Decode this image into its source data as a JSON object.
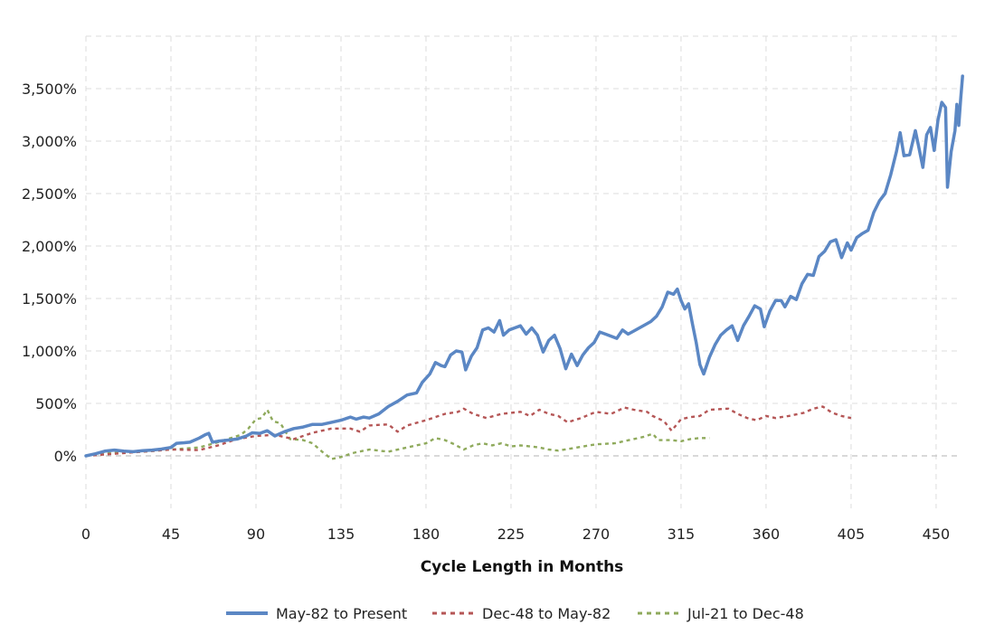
{
  "chart_data": {
    "type": "line",
    "title": "",
    "xlabel": "Cycle Length in Months",
    "ylabel": "",
    "xlim": [
      0,
      462
    ],
    "ylim": [
      -500,
      4000
    ],
    "x_ticks": [
      0,
      45,
      90,
      135,
      180,
      225,
      270,
      315,
      360,
      405,
      450
    ],
    "x_tick_labels": [
      "0",
      "45",
      "90",
      "135",
      "180",
      "225",
      "270",
      "315",
      "360",
      "405",
      "450"
    ],
    "y_ticks": [
      0,
      500,
      1000,
      1500,
      2000,
      2500,
      3000,
      3500
    ],
    "y_tick_labels": [
      "0%",
      "500%",
      "1,000%",
      "1,500%",
      "2,000%",
      "2,500%",
      "3,000%",
      "3,500%"
    ],
    "grid": true,
    "legend_position": "bottom",
    "series": [
      {
        "name": "May-82 to Present",
        "color": "#5b87c4",
        "style": "solid",
        "points": [
          [
            0,
            0
          ],
          [
            5,
            20
          ],
          [
            10,
            45
          ],
          [
            15,
            55
          ],
          [
            20,
            45
          ],
          [
            25,
            40
          ],
          [
            30,
            50
          ],
          [
            35,
            55
          ],
          [
            40,
            65
          ],
          [
            45,
            80
          ],
          [
            48,
            120
          ],
          [
            52,
            125
          ],
          [
            55,
            130
          ],
          [
            60,
            170
          ],
          [
            63,
            200
          ],
          [
            65,
            215
          ],
          [
            67,
            130
          ],
          [
            70,
            140
          ],
          [
            75,
            150
          ],
          [
            80,
            160
          ],
          [
            85,
            190
          ],
          [
            88,
            220
          ],
          [
            92,
            215
          ],
          [
            96,
            240
          ],
          [
            100,
            190
          ],
          [
            105,
            230
          ],
          [
            110,
            260
          ],
          [
            115,
            275
          ],
          [
            120,
            300
          ],
          [
            125,
            300
          ],
          [
            130,
            320
          ],
          [
            135,
            340
          ],
          [
            140,
            370
          ],
          [
            143,
            350
          ],
          [
            147,
            370
          ],
          [
            150,
            360
          ],
          [
            155,
            400
          ],
          [
            160,
            470
          ],
          [
            165,
            520
          ],
          [
            170,
            580
          ],
          [
            175,
            600
          ],
          [
            178,
            700
          ],
          [
            182,
            780
          ],
          [
            185,
            890
          ],
          [
            188,
            860
          ],
          [
            190,
            850
          ],
          [
            193,
            960
          ],
          [
            196,
            1000
          ],
          [
            199,
            990
          ],
          [
            201,
            820
          ],
          [
            204,
            950
          ],
          [
            207,
            1030
          ],
          [
            210,
            1200
          ],
          [
            213,
            1220
          ],
          [
            216,
            1180
          ],
          [
            219,
            1290
          ],
          [
            221,
            1150
          ],
          [
            224,
            1200
          ],
          [
            227,
            1220
          ],
          [
            230,
            1240
          ],
          [
            233,
            1160
          ],
          [
            236,
            1220
          ],
          [
            239,
            1150
          ],
          [
            242,
            990
          ],
          [
            245,
            1100
          ],
          [
            248,
            1150
          ],
          [
            251,
            1020
          ],
          [
            254,
            830
          ],
          [
            257,
            970
          ],
          [
            260,
            860
          ],
          [
            263,
            960
          ],
          [
            266,
            1030
          ],
          [
            269,
            1080
          ],
          [
            272,
            1180
          ],
          [
            275,
            1160
          ],
          [
            278,
            1140
          ],
          [
            281,
            1120
          ],
          [
            284,
            1200
          ],
          [
            287,
            1160
          ],
          [
            290,
            1190
          ],
          [
            293,
            1220
          ],
          [
            296,
            1250
          ],
          [
            299,
            1280
          ],
          [
            302,
            1330
          ],
          [
            305,
            1420
          ],
          [
            308,
            1560
          ],
          [
            311,
            1540
          ],
          [
            313,
            1590
          ],
          [
            315,
            1480
          ],
          [
            317,
            1400
          ],
          [
            319,
            1450
          ],
          [
            321,
            1260
          ],
          [
            323,
            1080
          ],
          [
            325,
            870
          ],
          [
            327,
            780
          ],
          [
            330,
            940
          ],
          [
            333,
            1060
          ],
          [
            336,
            1150
          ],
          [
            339,
            1200
          ],
          [
            342,
            1240
          ],
          [
            345,
            1100
          ],
          [
            348,
            1240
          ],
          [
            351,
            1330
          ],
          [
            354,
            1430
          ],
          [
            357,
            1400
          ],
          [
            359,
            1230
          ],
          [
            362,
            1380
          ],
          [
            365,
            1480
          ],
          [
            368,
            1480
          ],
          [
            370,
            1420
          ],
          [
            373,
            1520
          ],
          [
            376,
            1490
          ],
          [
            379,
            1640
          ],
          [
            382,
            1730
          ],
          [
            385,
            1720
          ],
          [
            388,
            1900
          ],
          [
            391,
            1950
          ],
          [
            394,
            2040
          ],
          [
            397,
            2060
          ],
          [
            400,
            1890
          ],
          [
            403,
            2030
          ],
          [
            405,
            1960
          ],
          [
            408,
            2080
          ],
          [
            411,
            2120
          ],
          [
            414,
            2150
          ],
          [
            417,
            2320
          ],
          [
            420,
            2430
          ],
          [
            423,
            2500
          ],
          [
            426,
            2680
          ],
          [
            429,
            2900
          ],
          [
            431,
            3080
          ],
          [
            433,
            2860
          ],
          [
            436,
            2870
          ],
          [
            439,
            3100
          ],
          [
            441,
            2930
          ],
          [
            443,
            2750
          ],
          [
            445,
            3060
          ],
          [
            447,
            3130
          ],
          [
            449,
            2910
          ],
          [
            451,
            3200
          ],
          [
            453,
            3370
          ],
          [
            455,
            3320
          ],
          [
            456,
            2560
          ],
          [
            458,
            2900
          ],
          [
            460,
            3100
          ],
          [
            461,
            3350
          ],
          [
            462,
            3150
          ],
          [
            463,
            3400
          ],
          [
            464,
            3620
          ]
        ]
      },
      {
        "name": "Dec-48 to May-82",
        "color": "#b55656",
        "style": "dashed",
        "points": [
          [
            0,
            0
          ],
          [
            15,
            20
          ],
          [
            30,
            40
          ],
          [
            45,
            60
          ],
          [
            60,
            55
          ],
          [
            70,
            100
          ],
          [
            80,
            160
          ],
          [
            90,
            190
          ],
          [
            100,
            200
          ],
          [
            110,
            160
          ],
          [
            120,
            220
          ],
          [
            130,
            260
          ],
          [
            140,
            260
          ],
          [
            145,
            230
          ],
          [
            150,
            290
          ],
          [
            160,
            300
          ],
          [
            165,
            230
          ],
          [
            170,
            290
          ],
          [
            180,
            340
          ],
          [
            190,
            400
          ],
          [
            197,
            420
          ],
          [
            200,
            450
          ],
          [
            205,
            400
          ],
          [
            212,
            360
          ],
          [
            220,
            400
          ],
          [
            230,
            420
          ],
          [
            235,
            380
          ],
          [
            240,
            440
          ],
          [
            245,
            400
          ],
          [
            250,
            380
          ],
          [
            255,
            320
          ],
          [
            262,
            360
          ],
          [
            270,
            420
          ],
          [
            278,
            400
          ],
          [
            285,
            460
          ],
          [
            290,
            440
          ],
          [
            297,
            420
          ],
          [
            300,
            380
          ],
          [
            306,
            330
          ],
          [
            310,
            240
          ],
          [
            315,
            350
          ],
          [
            320,
            370
          ],
          [
            325,
            380
          ],
          [
            330,
            440
          ],
          [
            340,
            450
          ],
          [
            345,
            400
          ],
          [
            350,
            360
          ],
          [
            355,
            340
          ],
          [
            360,
            380
          ],
          [
            365,
            360
          ],
          [
            372,
            380
          ],
          [
            380,
            410
          ],
          [
            385,
            450
          ],
          [
            390,
            470
          ],
          [
            395,
            410
          ],
          [
            400,
            380
          ],
          [
            405,
            360
          ]
        ]
      },
      {
        "name": "Jul-21 to Dec-48",
        "color": "#8faa5c",
        "style": "dashed",
        "points": [
          [
            0,
            0
          ],
          [
            15,
            30
          ],
          [
            30,
            40
          ],
          [
            45,
            60
          ],
          [
            60,
            80
          ],
          [
            70,
            130
          ],
          [
            75,
            160
          ],
          [
            82,
            200
          ],
          [
            86,
            260
          ],
          [
            90,
            350
          ],
          [
            93,
            360
          ],
          [
            96,
            440
          ],
          [
            99,
            330
          ],
          [
            103,
            310
          ],
          [
            108,
            160
          ],
          [
            115,
            150
          ],
          [
            120,
            120
          ],
          [
            125,
            40
          ],
          [
            130,
            -30
          ],
          [
            135,
            -10
          ],
          [
            142,
            30
          ],
          [
            150,
            60
          ],
          [
            160,
            40
          ],
          [
            170,
            80
          ],
          [
            180,
            120
          ],
          [
            185,
            170
          ],
          [
            190,
            150
          ],
          [
            195,
            110
          ],
          [
            200,
            60
          ],
          [
            205,
            100
          ],
          [
            210,
            120
          ],
          [
            215,
            100
          ],
          [
            220,
            120
          ],
          [
            225,
            90
          ],
          [
            230,
            100
          ],
          [
            240,
            80
          ],
          [
            245,
            60
          ],
          [
            250,
            50
          ],
          [
            260,
            80
          ],
          [
            270,
            110
          ],
          [
            280,
            120
          ],
          [
            290,
            160
          ],
          [
            295,
            180
          ],
          [
            300,
            210
          ],
          [
            303,
            150
          ],
          [
            310,
            150
          ],
          [
            315,
            140
          ],
          [
            320,
            160
          ],
          [
            325,
            170
          ],
          [
            330,
            170
          ]
        ]
      }
    ]
  }
}
